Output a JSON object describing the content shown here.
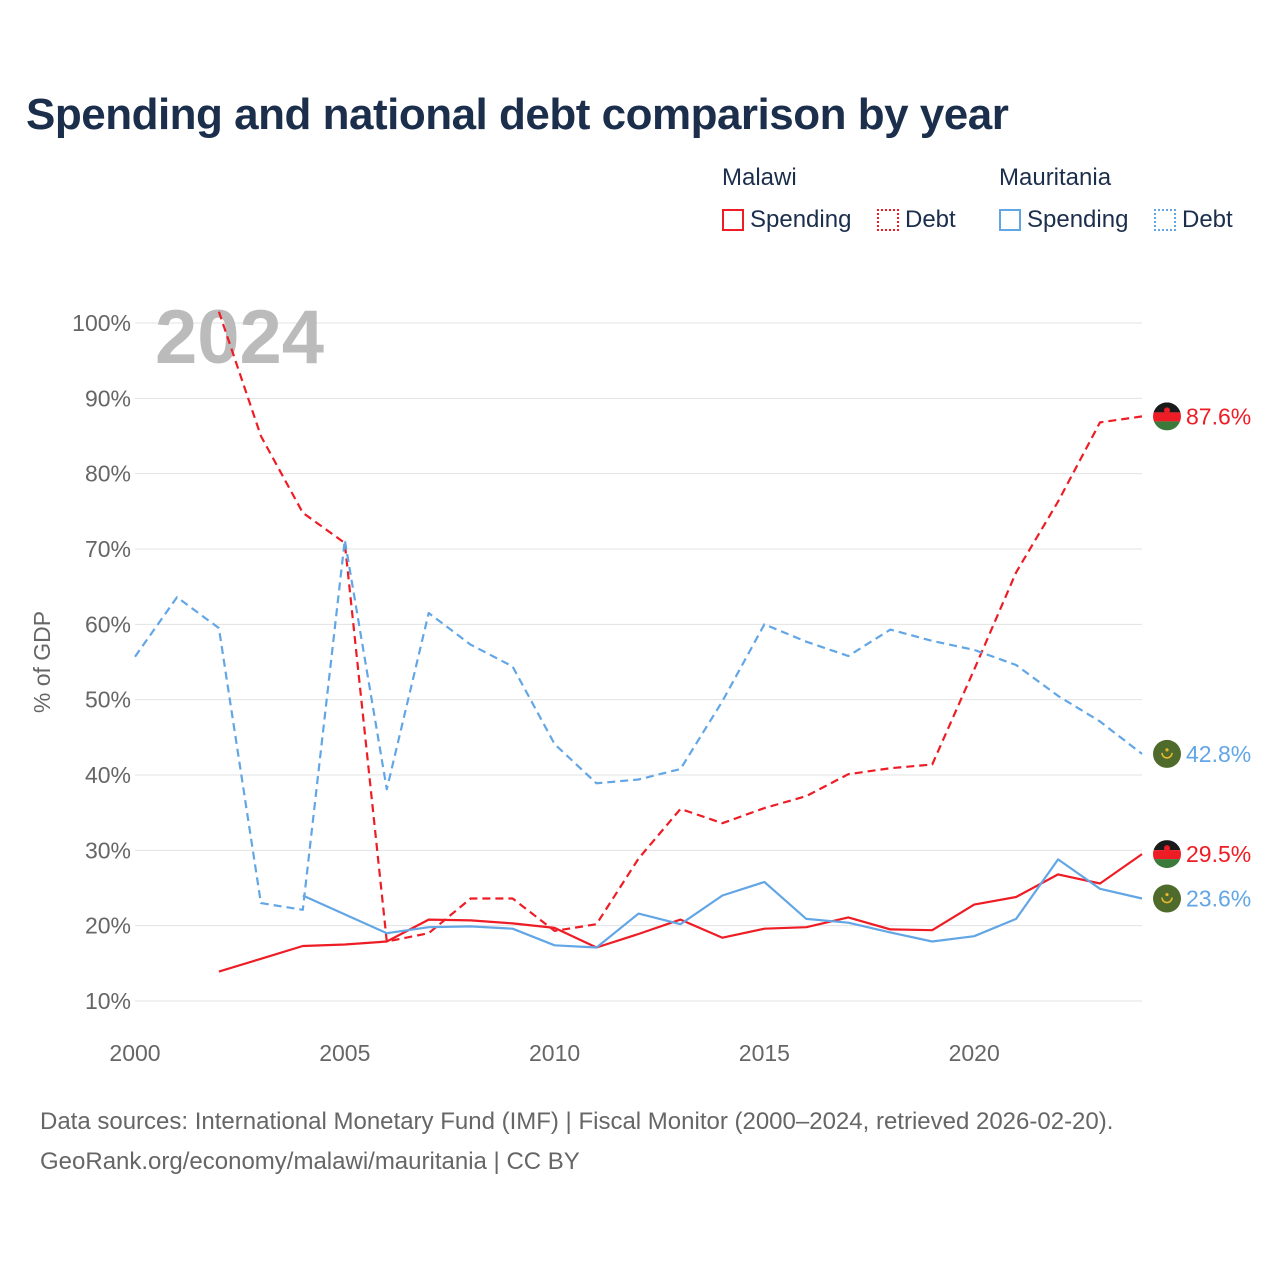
{
  "title": "Spending and national debt comparison by year",
  "legend": {
    "groups": [
      {
        "country": "Malawi",
        "color": "#ee1c25",
        "items": [
          "Spending",
          "Debt"
        ]
      },
      {
        "country": "Mauritania",
        "color": "#62a6e6",
        "items": [
          "Spending",
          "Debt"
        ]
      }
    ]
  },
  "footer": {
    "line1": "Data sources: International Monetary Fund (IMF) | Fiscal Monitor (2000–2024, retrieved 2026-02-20).",
    "line2": "GeoRank.org/economy/malawi/mauritania | CC BY"
  },
  "chart_data": {
    "type": "line",
    "title": "Spending and national debt comparison by year",
    "ylabel": "% of GDP",
    "xlabel": "",
    "year_label": "2024",
    "xlim": [
      2000,
      2024
    ],
    "ylim": [
      10,
      100
    ],
    "x_ticks": [
      2000,
      2005,
      2010,
      2015,
      2020
    ],
    "y_ticks": [
      10,
      20,
      30,
      40,
      50,
      60,
      70,
      80,
      90,
      100
    ],
    "y_tick_labels": [
      "10%",
      "20%",
      "30%",
      "40%",
      "50%",
      "60%",
      "70%",
      "80%",
      "90%",
      "100%"
    ],
    "series": [
      {
        "name": "Malawi Spending",
        "country": "Malawi",
        "metric": "Spending",
        "color": "#ee1c25",
        "dash": "solid",
        "end_label": "29.5%",
        "points": [
          [
            2002,
            13.9
          ],
          [
            2003,
            15.6
          ],
          [
            2004,
            17.3
          ],
          [
            2005,
            17.5
          ],
          [
            2006,
            17.9
          ],
          [
            2007,
            20.8
          ],
          [
            2008,
            20.7
          ],
          [
            2009,
            20.3
          ],
          [
            2010,
            19.7
          ],
          [
            2011,
            17.1
          ],
          [
            2012,
            18.9
          ],
          [
            2013,
            20.8
          ],
          [
            2014,
            18.4
          ],
          [
            2015,
            19.6
          ],
          [
            2016,
            19.8
          ],
          [
            2017,
            21.1
          ],
          [
            2018,
            19.5
          ],
          [
            2019,
            19.4
          ],
          [
            2020,
            22.8
          ],
          [
            2021,
            23.8
          ],
          [
            2022,
            26.8
          ],
          [
            2023,
            25.6
          ],
          [
            2024,
            29.5
          ]
        ]
      },
      {
        "name": "Malawi Debt",
        "country": "Malawi",
        "metric": "Debt",
        "color": "#ee1c25",
        "dash": "dashed",
        "end_label": "87.6%",
        "points": [
          [
            2002,
            101.5
          ],
          [
            2003,
            85.0
          ],
          [
            2004,
            74.8
          ],
          [
            2005,
            70.8
          ],
          [
            2006,
            17.9
          ],
          [
            2007,
            19.0
          ],
          [
            2008,
            23.6
          ],
          [
            2009,
            23.6
          ],
          [
            2010,
            19.3
          ],
          [
            2011,
            20.2
          ],
          [
            2012,
            28.9
          ],
          [
            2013,
            35.5
          ],
          [
            2014,
            33.6
          ],
          [
            2015,
            35.6
          ],
          [
            2016,
            37.2
          ],
          [
            2017,
            40.1
          ],
          [
            2018,
            40.9
          ],
          [
            2019,
            41.4
          ],
          [
            2020,
            54.0
          ],
          [
            2021,
            66.9
          ],
          [
            2022,
            76.3
          ],
          [
            2023,
            86.8
          ],
          [
            2024,
            87.6
          ]
        ]
      },
      {
        "name": "Mauritania Spending",
        "country": "Mauritania",
        "metric": "Spending",
        "color": "#62a6e6",
        "dash": "solid",
        "end_label": "23.6%",
        "points": [
          [
            2004,
            24.0
          ],
          [
            2005,
            21.5
          ],
          [
            2006,
            19.0
          ],
          [
            2007,
            19.8
          ],
          [
            2008,
            19.9
          ],
          [
            2009,
            19.6
          ],
          [
            2010,
            17.4
          ],
          [
            2011,
            17.1
          ],
          [
            2012,
            21.6
          ],
          [
            2013,
            20.2
          ],
          [
            2014,
            24.0
          ],
          [
            2015,
            25.8
          ],
          [
            2016,
            20.9
          ],
          [
            2017,
            20.4
          ],
          [
            2018,
            19.1
          ],
          [
            2019,
            17.9
          ],
          [
            2020,
            18.6
          ],
          [
            2021,
            20.9
          ],
          [
            2022,
            28.8
          ],
          [
            2023,
            24.9
          ],
          [
            2024,
            23.6
          ]
        ]
      },
      {
        "name": "Mauritania Debt",
        "country": "Mauritania",
        "metric": "Debt",
        "color": "#62a6e6",
        "dash": "dashed",
        "end_label": "42.8%",
        "points": [
          [
            2000,
            55.7
          ],
          [
            2001,
            63.6
          ],
          [
            2002,
            59.5
          ],
          [
            2003,
            23.0
          ],
          [
            2004,
            22.1
          ],
          [
            2005,
            71.2
          ],
          [
            2006,
            38.1
          ],
          [
            2007,
            61.5
          ],
          [
            2008,
            57.3
          ],
          [
            2009,
            54.4
          ],
          [
            2010,
            44.1
          ],
          [
            2011,
            38.9
          ],
          [
            2012,
            39.4
          ],
          [
            2013,
            40.8
          ],
          [
            2014,
            49.8
          ],
          [
            2015,
            60.0
          ],
          [
            2016,
            57.7
          ],
          [
            2017,
            55.8
          ],
          [
            2018,
            59.3
          ],
          [
            2019,
            57.8
          ],
          [
            2020,
            56.6
          ],
          [
            2021,
            54.6
          ],
          [
            2022,
            50.5
          ],
          [
            2023,
            47.1
          ],
          [
            2024,
            42.8
          ]
        ]
      }
    ]
  }
}
